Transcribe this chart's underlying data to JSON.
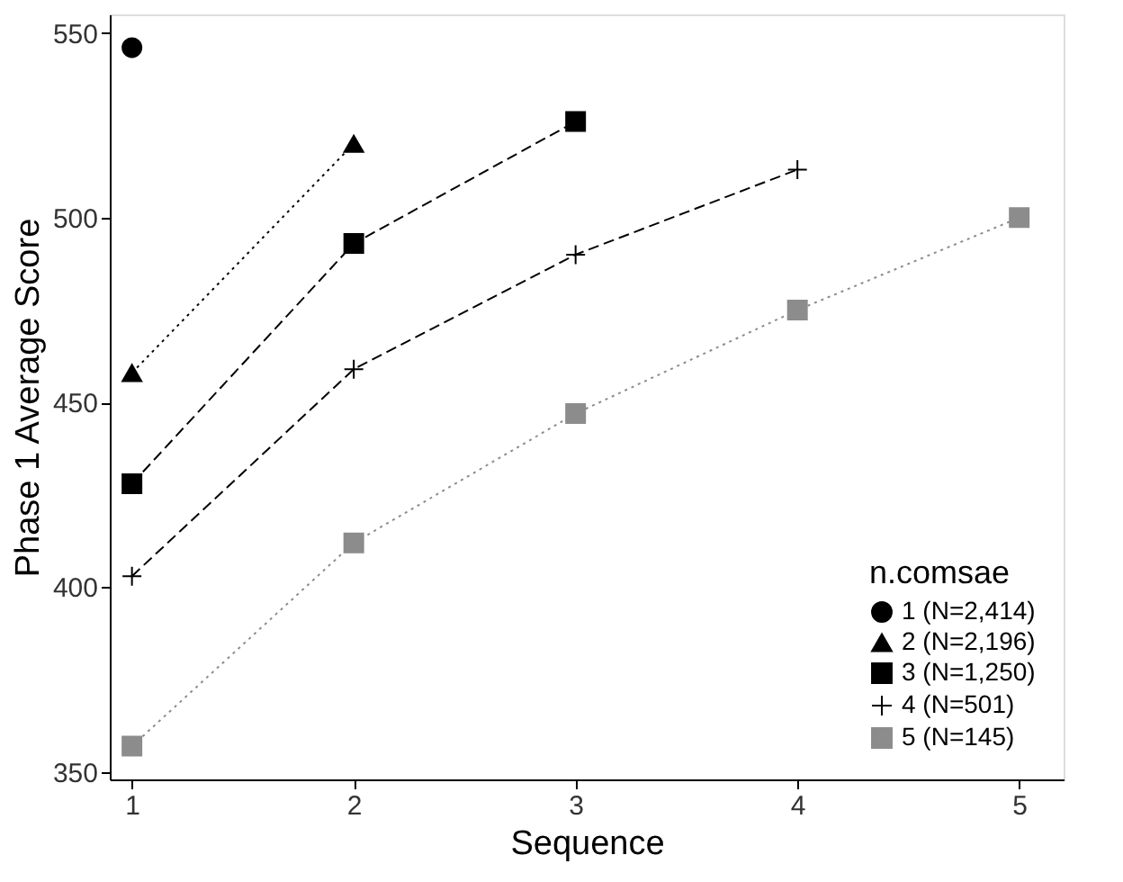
{
  "chart_data": {
    "type": "line",
    "xlabel": "Sequence",
    "ylabel": "Phase 1 Average Score",
    "legend_title": "n.comsae",
    "xlim": [
      0.9,
      5.2
    ],
    "xticks": [
      1,
      2,
      3,
      4,
      5
    ],
    "ylim": [
      348,
      555
    ],
    "yticks": [
      350,
      400,
      450,
      500,
      550
    ],
    "grid": false,
    "legend": "bottom right",
    "series": [
      {
        "name": "1 (N=2,414)",
        "color": "#000000",
        "marker": "circle",
        "x": [
          1
        ],
        "values": [
          546
        ]
      },
      {
        "name": "2 (N=2,196)",
        "color": "#000000",
        "marker": "triangle",
        "line_style": "dotted",
        "x": [
          1,
          2
        ],
        "values": [
          458,
          520
        ]
      },
      {
        "name": "3 (N=1,250)",
        "color": "#000000",
        "marker": "square",
        "line_style": "dashed",
        "x": [
          1,
          2,
          3
        ],
        "values": [
          428,
          493,
          526
        ]
      },
      {
        "name": "4 (N=501)",
        "color": "#000000",
        "marker": "cross",
        "line_style": "dashed",
        "x": [
          1,
          2,
          3,
          4
        ],
        "values": [
          403,
          459,
          490,
          513
        ]
      },
      {
        "name": "5 (N=145)",
        "color": "#8c8c8c",
        "marker": "square",
        "line_style": "dotted",
        "x": [
          1,
          2,
          3,
          4,
          5
        ],
        "values": [
          357,
          412,
          447,
          475,
          500
        ]
      }
    ]
  }
}
